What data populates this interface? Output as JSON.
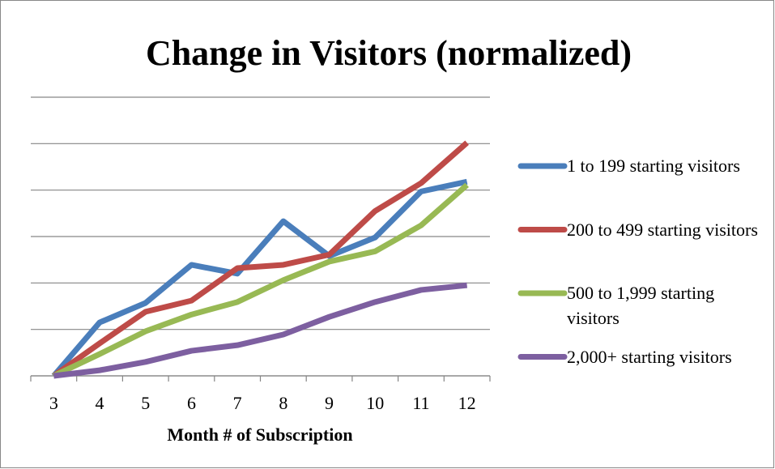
{
  "chart_data": {
    "type": "line",
    "title": "Change in Visitors (normalized)",
    "x_label": "Month # of Subscription",
    "categories": [
      "3",
      "4",
      "5",
      "6",
      "7",
      "8",
      "9",
      "10",
      "11",
      "12"
    ],
    "series": [
      {
        "name": "1 to 199 starting visitors",
        "color": "#4a7ebb",
        "values": [
          0,
          1.15,
          1.57,
          2.39,
          2.2,
          3.33,
          2.58,
          2.98,
          3.97,
          4.18
        ]
      },
      {
        "name": "200 to 499 starting visitors",
        "color": "#be4b48",
        "values": [
          0,
          0.7,
          1.38,
          1.62,
          2.32,
          2.39,
          2.61,
          3.55,
          4.15,
          5.02
        ]
      },
      {
        "name": "500 to 1,999 starting visitors",
        "color": "#98b954",
        "values": [
          0,
          0.47,
          0.96,
          1.32,
          1.59,
          2.06,
          2.46,
          2.68,
          3.24,
          4.11
        ]
      },
      {
        "name": "2,000+ starting visitors",
        "color": "#7d5fa0",
        "values": [
          0,
          0.12,
          0.3,
          0.54,
          0.66,
          0.89,
          1.27,
          1.59,
          1.85,
          1.95
        ]
      }
    ],
    "ylim": [
      0,
      6
    ],
    "yticks": [
      0,
      1,
      2,
      3,
      4,
      5,
      6
    ],
    "grid": true,
    "legend": "right"
  }
}
